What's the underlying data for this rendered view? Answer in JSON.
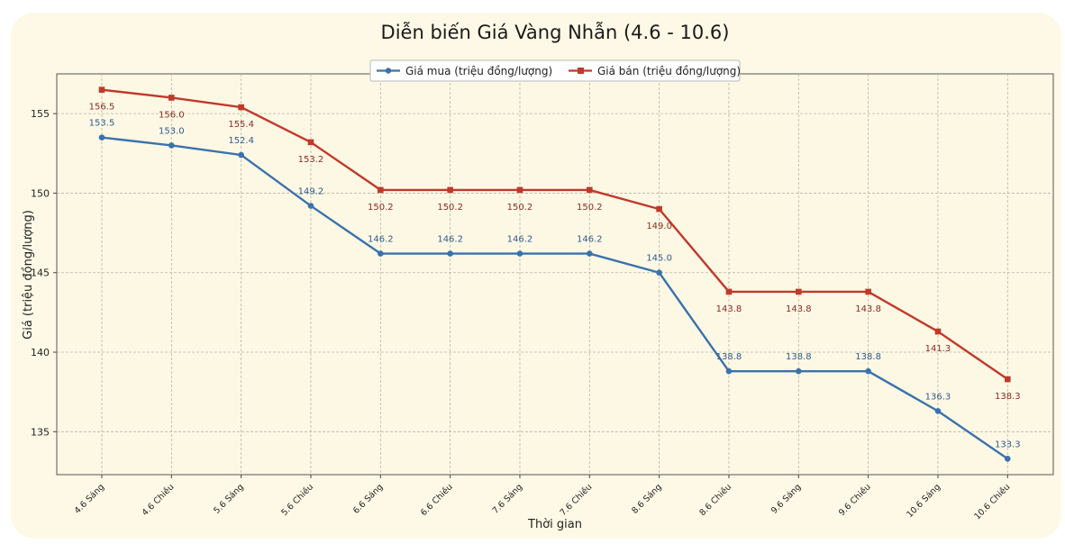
{
  "chart_data": {
    "type": "line",
    "title": "Diễn biến Giá Vàng Nhẫn (4.6 - 10.6)",
    "xlabel": "Thời gian",
    "ylabel": "Giá (triệu đồng/lượng)",
    "categories": [
      "4.6 Sáng",
      "4.6 Chiều",
      "5.6 Sáng",
      "5.6 Chiều",
      "6.6 Sáng",
      "6.6 Chiều",
      "7.6 Sáng",
      "7.6 Chiều",
      "8.6 Sáng",
      "8.6 Chiều",
      "9.6 Sáng",
      "9.6 Chiều",
      "10.6 Sáng",
      "10.6 Chiều"
    ],
    "yticks": [
      135,
      140,
      145,
      150,
      155
    ],
    "ylim": [
      132.3,
      157.5
    ],
    "grid": true,
    "legend_position": "top-center",
    "series": [
      {
        "name": "Giá mua (triệu đồng/lượng)",
        "color": "#3a72ad",
        "marker": "circle",
        "values": [
          153.5,
          153.0,
          152.4,
          149.2,
          146.2,
          146.2,
          146.2,
          146.2,
          145.0,
          138.8,
          138.8,
          138.8,
          136.3,
          133.3
        ],
        "labels": [
          "153.5",
          "153.0",
          "152.4",
          "149.2",
          "146.2",
          "146.2",
          "146.2",
          "146.2",
          "145.0",
          "138.8",
          "138.8",
          "138.8",
          "136.3",
          "133.3"
        ]
      },
      {
        "name": "Giá bán (triệu đồng/lượng)",
        "color": "#c0392b",
        "marker": "square",
        "values": [
          156.5,
          156.0,
          155.4,
          153.2,
          150.2,
          150.2,
          150.2,
          150.2,
          149.0,
          143.8,
          143.8,
          143.8,
          141.3,
          138.3
        ],
        "labels": [
          "156.5",
          "156.0",
          "155.4",
          "153.2",
          "150.2",
          "150.2",
          "150.2",
          "150.2",
          "149.0",
          "143.8",
          "143.8",
          "143.8",
          "141.3",
          "138.3"
        ]
      }
    ]
  }
}
